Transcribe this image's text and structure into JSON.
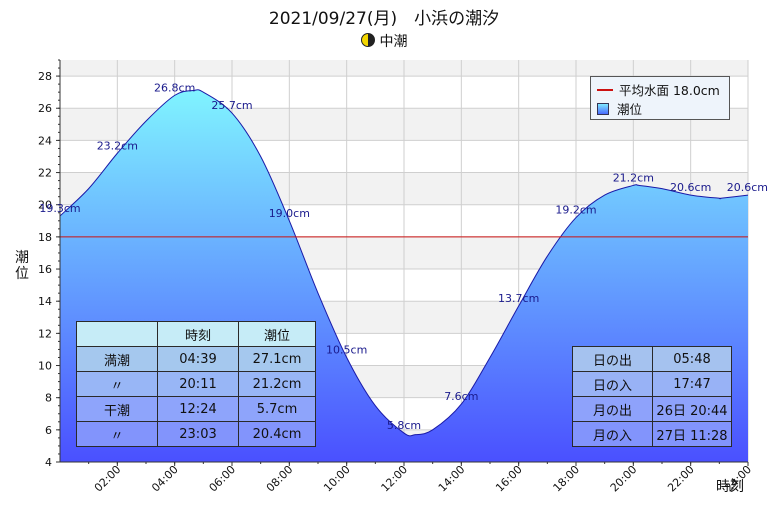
{
  "title": "2021/09/27(月)　小浜の潮汐",
  "subtitle": "中潮",
  "colors": {
    "mean_line": "#cc1111",
    "fill_top": "#80f4ff",
    "fill_bottom": "#4a50ff",
    "curve": "#1a1aa8"
  },
  "legend": {
    "mean": "平均水面 18.0cm",
    "tide": "潮位"
  },
  "chart_data": {
    "type": "area",
    "xlabel": "時刻",
    "ylabel": "潮位",
    "xlim": [
      0,
      24
    ],
    "ylim": [
      4,
      29
    ],
    "yticks": [
      "4",
      "6",
      "8",
      "10",
      "12",
      "14",
      "16",
      "18",
      "20",
      "22",
      "24",
      "26",
      "28"
    ],
    "xticks": [
      "02:00",
      "04:00",
      "06:00",
      "08:00",
      "10:00",
      "12:00",
      "14:00",
      "16:00",
      "18:00",
      "20:00",
      "22:00",
      "24:00"
    ],
    "mean_level": 18.0,
    "x": [
      0,
      1,
      2,
      3,
      4,
      4.65,
      5,
      6,
      7,
      8,
      9,
      10,
      11,
      12,
      12.4,
      13,
      14,
      15,
      16,
      17,
      18,
      19,
      20,
      20.2,
      21,
      22,
      23,
      23.05,
      24
    ],
    "y": [
      19.3,
      21.0,
      23.2,
      25.2,
      26.8,
      27.1,
      27.0,
      25.7,
      23.0,
      19.0,
      14.5,
      10.5,
      7.5,
      5.8,
      5.7,
      6.0,
      7.6,
      10.5,
      13.7,
      16.8,
      19.2,
      20.6,
      21.2,
      21.2,
      21.0,
      20.6,
      20.4,
      20.4,
      20.6
    ],
    "labels": [
      {
        "x": 0,
        "y": 19.3,
        "text": "19.3cm"
      },
      {
        "x": 2,
        "y": 23.2,
        "text": "23.2cm"
      },
      {
        "x": 4,
        "y": 26.8,
        "text": "26.8cm"
      },
      {
        "x": 6,
        "y": 25.7,
        "text": "25.7cm"
      },
      {
        "x": 8,
        "y": 19.0,
        "text": "19.0cm"
      },
      {
        "x": 10,
        "y": 10.5,
        "text": "10.5cm"
      },
      {
        "x": 12,
        "y": 5.8,
        "text": "5.8cm"
      },
      {
        "x": 14,
        "y": 7.6,
        "text": "7.6cm"
      },
      {
        "x": 16,
        "y": 13.7,
        "text": "13.7cm"
      },
      {
        "x": 18,
        "y": 19.2,
        "text": "19.2cm"
      },
      {
        "x": 20,
        "y": 21.2,
        "text": "21.2cm"
      },
      {
        "x": 22,
        "y": 20.6,
        "text": "20.6cm"
      },
      {
        "x": 24,
        "y": 20.6,
        "text": "20.6cm"
      }
    ]
  },
  "tide_table": {
    "headers": [
      "",
      "時刻",
      "潮位"
    ],
    "rows": [
      [
        "満潮",
        "04:39",
        "27.1cm"
      ],
      [
        "〃",
        "20:11",
        "21.2cm"
      ],
      [
        "干潮",
        "12:24",
        "5.7cm"
      ],
      [
        "〃",
        "23:03",
        "20.4cm"
      ]
    ]
  },
  "sun_moon": {
    "rows": [
      [
        "日の出",
        "05:48"
      ],
      [
        "日の入",
        "17:47"
      ],
      [
        "月の出",
        "26日 20:44"
      ],
      [
        "月の入",
        "27日 11:28"
      ]
    ]
  }
}
